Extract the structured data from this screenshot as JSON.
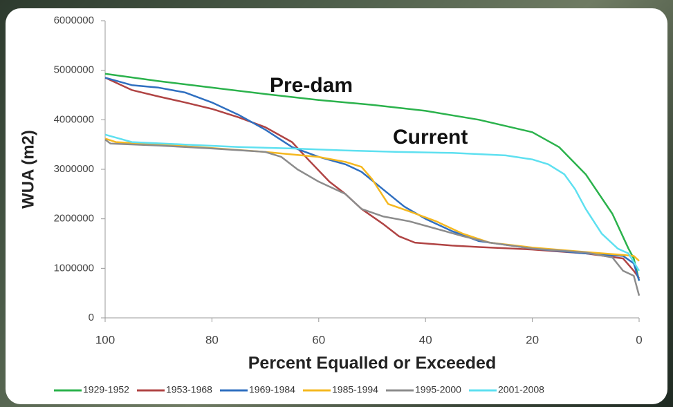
{
  "chart_data": {
    "type": "line",
    "ylabel": "WUA (m2)",
    "xlabel": "Percent Equalled or Exceeded",
    "annotations": [
      "Pre-dam",
      "Current"
    ],
    "xlim": [
      100,
      0
    ],
    "xticks": [
      100,
      80,
      60,
      40,
      20,
      0
    ],
    "ylim": [
      0,
      6000000
    ],
    "yticks": [
      0,
      1000000,
      2000000,
      3000000,
      4000000,
      5000000,
      6000000
    ],
    "grid": false,
    "legend": "bottom",
    "series": [
      {
        "name": "1929-1952",
        "color": "#2bb24c",
        "x": [
          100,
          90,
          80,
          70,
          60,
          50,
          40,
          30,
          20,
          15,
          10,
          5,
          2,
          1,
          0
        ],
        "values": [
          4930000,
          4780000,
          4650000,
          4520000,
          4400000,
          4300000,
          4180000,
          4000000,
          3750000,
          3450000,
          2900000,
          2100000,
          1400000,
          1200000,
          750000
        ]
      },
      {
        "name": "1953-1968",
        "color": "#b04444",
        "x": [
          100,
          95,
          90,
          85,
          80,
          75,
          70,
          65,
          62,
          58,
          55,
          52,
          48,
          45,
          42,
          35,
          30,
          20,
          10,
          3,
          1,
          0
        ],
        "values": [
          4850000,
          4600000,
          4470000,
          4350000,
          4220000,
          4050000,
          3850000,
          3550000,
          3200000,
          2750000,
          2500000,
          2200000,
          1900000,
          1650000,
          1520000,
          1460000,
          1430000,
          1380000,
          1300000,
          1200000,
          950000,
          800000
        ]
      },
      {
        "name": "1969-1984",
        "color": "#2f6fc0",
        "x": [
          100,
          95,
          90,
          85,
          80,
          75,
          70,
          65,
          60,
          55,
          52,
          48,
          44,
          40,
          35,
          30,
          20,
          10,
          3,
          1,
          0
        ],
        "values": [
          4850000,
          4700000,
          4650000,
          4550000,
          4350000,
          4100000,
          3800000,
          3450000,
          3250000,
          3100000,
          2950000,
          2600000,
          2250000,
          2000000,
          1750000,
          1550000,
          1400000,
          1300000,
          1250000,
          1100000,
          750000
        ]
      },
      {
        "name": "1985-1994",
        "color": "#f5b820",
        "x": [
          100,
          98,
          90,
          80,
          70,
          65,
          60,
          55,
          52,
          50,
          47,
          43,
          38,
          33,
          28,
          20,
          10,
          3,
          1,
          0
        ],
        "values": [
          3620000,
          3550000,
          3500000,
          3430000,
          3350000,
          3300000,
          3250000,
          3150000,
          3050000,
          2800000,
          2300000,
          2150000,
          1950000,
          1700000,
          1520000,
          1420000,
          1330000,
          1270000,
          1250000,
          1150000
        ]
      },
      {
        "name": "1995-2000",
        "color": "#8c8c8c",
        "x": [
          100,
          99,
          90,
          80,
          70,
          67,
          64,
          60,
          55,
          52,
          48,
          43,
          38,
          33,
          28,
          20,
          10,
          5,
          3,
          1,
          0
        ],
        "values": [
          3600000,
          3520000,
          3480000,
          3420000,
          3350000,
          3250000,
          3000000,
          2750000,
          2500000,
          2200000,
          2050000,
          1950000,
          1800000,
          1650000,
          1520000,
          1400000,
          1320000,
          1220000,
          950000,
          850000,
          450000
        ]
      },
      {
        "name": "2001-2008",
        "color": "#5ee0f0",
        "x": [
          100,
          95,
          85,
          75,
          65,
          55,
          45,
          35,
          25,
          20,
          17,
          14,
          12,
          10,
          7,
          4,
          2,
          0
        ],
        "values": [
          3700000,
          3550000,
          3500000,
          3450000,
          3420000,
          3380000,
          3350000,
          3330000,
          3280000,
          3200000,
          3100000,
          2900000,
          2600000,
          2200000,
          1700000,
          1400000,
          1300000,
          950000
        ]
      }
    ]
  }
}
